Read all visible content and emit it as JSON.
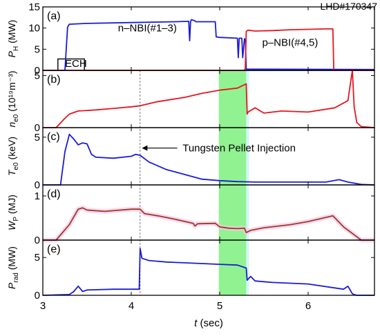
{
  "figure": {
    "shot_label": "LHD#170347",
    "xlabel_main": "t",
    "xlabel_unit": " (sec)",
    "x_ticks": [
      3,
      4,
      5,
      6
    ],
    "xlim": [
      3.0,
      6.75
    ],
    "green_band": [
      4.99,
      5.3
    ],
    "dashed_line_x": 4.1,
    "colors": {
      "blue": "#1a1adb",
      "red": "#e8141e",
      "brown": "#9b3a1e",
      "black": "#000000",
      "green": "#7ef07e",
      "pink": "#f6c8ec"
    }
  },
  "chart_data": [
    {
      "type": "line",
      "panel_label": "(a)",
      "ylabel_sym": "P",
      "ylabel_sub": "H",
      "ylabel_unit": " (MW)",
      "ylim": [
        0,
        15
      ],
      "yticks": [
        0,
        5,
        10,
        15
      ],
      "annotations": [
        {
          "text": "n–NBI(#1–3)",
          "x": 3.85,
          "y": 9.2
        },
        {
          "text": "p–NBI(#4,5)",
          "x": 5.48,
          "y": 5.8
        },
        {
          "text": "ECH",
          "x": 3.25,
          "y": 0.8
        }
      ],
      "series": [
        {
          "color_key": "black",
          "x": [
            3.0,
            3.17,
            3.17,
            3.47,
            3.47,
            6.75
          ],
          "y": [
            0,
            0,
            2.7,
            2.7,
            0,
            0
          ]
        },
        {
          "color_key": "blue",
          "x": [
            3.0,
            3.25,
            3.28,
            3.3,
            3.5,
            4.0,
            4.5,
            4.65,
            4.66,
            4.67,
            4.68,
            4.72,
            4.73,
            4.95,
            4.96,
            5.0,
            5.2,
            5.21,
            5.22,
            5.25,
            5.26,
            5.28,
            5.29,
            5.3,
            6.75
          ],
          "y": [
            0,
            0,
            10.2,
            10.9,
            11.1,
            11.3,
            11.5,
            11.6,
            7.0,
            11.5,
            12.0,
            11.7,
            11.5,
            11.5,
            7.9,
            7.8,
            7.6,
            3.0,
            7.6,
            7.6,
            3.0,
            7.5,
            7.2,
            0.3,
            0.2
          ]
        },
        {
          "color_key": "red",
          "x": [
            3.0,
            5.28,
            5.29,
            5.3,
            5.32,
            5.4,
            5.6,
            5.8,
            6.0,
            6.2,
            6.28,
            6.29,
            6.75
          ],
          "y": [
            0,
            0,
            0.5,
            9.2,
            9.5,
            9.3,
            9.4,
            9.6,
            9.7,
            9.8,
            9.8,
            0,
            0
          ]
        }
      ]
    },
    {
      "type": "line",
      "panel_label": "(b)",
      "ylabel_sym": "n",
      "ylabel_sub": "e0",
      "ylabel_unit": " (10¹⁹m⁻³)",
      "ylim": [
        0,
        5.5
      ],
      "yticks": [
        0,
        5
      ],
      "series": [
        {
          "color_key": "red",
          "x": [
            3.0,
            3.15,
            3.25,
            3.3,
            3.4,
            3.6,
            3.8,
            4.0,
            4.1,
            4.3,
            4.6,
            4.8,
            5.0,
            5.2,
            5.3,
            5.31,
            5.32,
            5.4,
            5.5,
            5.7,
            6.0,
            6.3,
            6.45,
            6.5,
            6.52,
            6.55,
            6.6,
            6.75
          ],
          "y": [
            0,
            0,
            0.9,
            1.3,
            1.6,
            1.7,
            1.85,
            2.0,
            2.1,
            2.5,
            2.9,
            3.3,
            3.6,
            3.8,
            4.2,
            1.3,
            1.5,
            1.9,
            1.4,
            1.6,
            1.5,
            1.9,
            2.6,
            5.5,
            2.0,
            0.5,
            0.1,
            0
          ]
        }
      ]
    },
    {
      "type": "line",
      "panel_label": "(c)",
      "ylabel_sym": "T",
      "ylabel_sub": "e0",
      "ylabel_unit": " (keV)",
      "ylim": [
        0,
        6
      ],
      "yticks": [
        0,
        5
      ],
      "annotations": [
        {
          "text": "Tungsten Pellet Injection",
          "x": 4.58,
          "y": 3.5
        }
      ],
      "series": [
        {
          "color_key": "blue",
          "x": [
            3.0,
            3.2,
            3.25,
            3.3,
            3.35,
            3.4,
            3.45,
            3.5,
            3.55,
            3.6,
            3.8,
            4.0,
            4.05,
            4.1,
            4.2,
            4.4,
            4.6,
            4.8,
            5.0,
            5.2,
            5.4,
            5.6,
            5.8,
            6.0,
            6.2,
            6.35,
            6.45,
            6.6,
            6.75
          ],
          "y": [
            0,
            0,
            3.5,
            5.3,
            4.8,
            4.2,
            4.4,
            4.3,
            3.2,
            2.9,
            2.8,
            3.0,
            3.2,
            3.1,
            2.4,
            1.6,
            1.1,
            0.6,
            0.45,
            0.35,
            0.3,
            0.3,
            0.3,
            0.3,
            0.3,
            0.55,
            0.3,
            0.05,
            0
          ]
        }
      ]
    },
    {
      "type": "line",
      "panel_label": "(d)",
      "ylabel_sym": "W",
      "ylabel_sub": "P",
      "ylabel_unit": " (MJ)",
      "ylim": [
        0,
        1.25
      ],
      "yticks": [
        0,
        1
      ],
      "series": [
        {
          "color_key": "brown",
          "x": [
            3.0,
            3.15,
            3.3,
            3.4,
            3.45,
            3.5,
            3.7,
            4.0,
            4.1,
            4.15,
            4.3,
            4.5,
            4.7,
            4.72,
            4.75,
            4.95,
            5.0,
            5.1,
            5.2,
            5.28,
            5.3,
            5.35,
            5.5,
            5.8,
            6.0,
            6.28,
            6.4,
            6.6,
            6.75
          ],
          "y": [
            0,
            0,
            0.35,
            0.7,
            0.73,
            0.68,
            0.65,
            0.7,
            0.7,
            0.6,
            0.55,
            0.47,
            0.38,
            0.32,
            0.37,
            0.38,
            0.3,
            0.27,
            0.26,
            0.27,
            0.17,
            0.22,
            0.28,
            0.35,
            0.42,
            0.55,
            0.3,
            0,
            0
          ]
        }
      ]
    },
    {
      "type": "line",
      "panel_label": "(e)",
      "ylabel_sym": "P",
      "ylabel_sub": "rad",
      "ylabel_unit": " (MW)",
      "ylim": [
        0,
        7.3
      ],
      "yticks": [
        0,
        5
      ],
      "series": [
        {
          "color_key": "blue",
          "x": [
            3.0,
            3.3,
            3.35,
            3.4,
            3.45,
            3.5,
            3.8,
            4.09,
            4.1,
            4.12,
            4.2,
            4.4,
            4.6,
            4.8,
            5.0,
            5.2,
            5.3,
            5.31,
            5.35,
            5.4,
            5.5,
            5.6,
            6.0,
            6.4,
            6.45,
            6.5,
            6.52,
            6.55,
            6.75
          ],
          "y": [
            0,
            0.1,
            0.5,
            1.2,
            0.5,
            0.7,
            0.8,
            0.8,
            6.2,
            4.9,
            4.6,
            4.4,
            4.3,
            4.2,
            4.1,
            4.0,
            3.6,
            2.0,
            2.5,
            1.9,
            1.8,
            1.7,
            1.5,
            0.8,
            1.2,
            0.2,
            0.1,
            0,
            0
          ]
        }
      ]
    }
  ]
}
